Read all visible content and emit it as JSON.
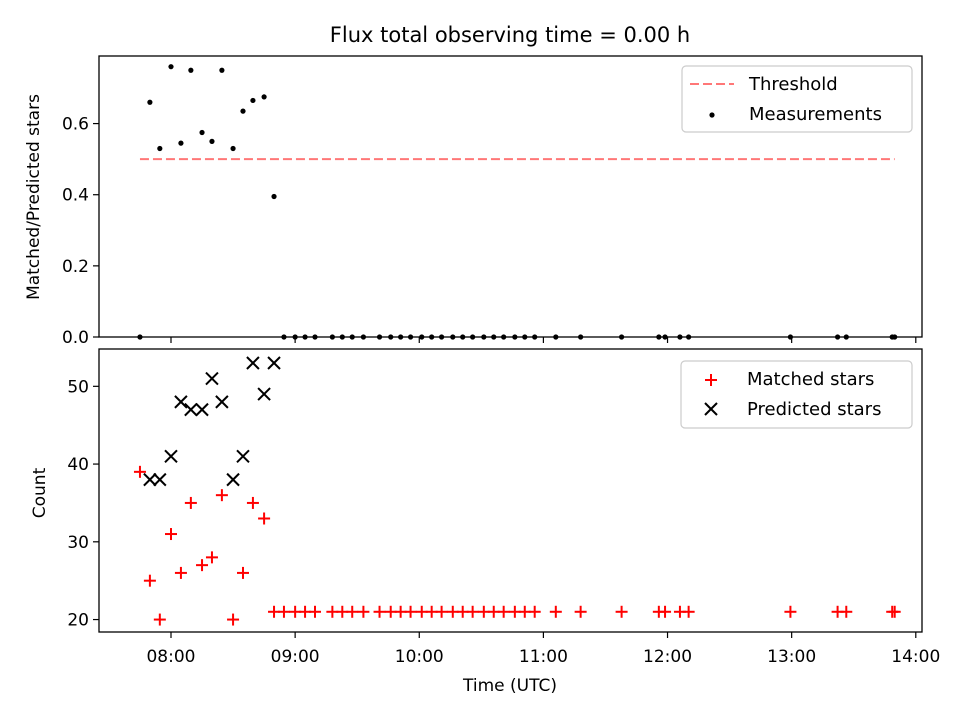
{
  "figure_title": "Flux total observing time = 0.00 h",
  "x_axis": {
    "label": "Time (UTC)",
    "range_hours": [
      7.42,
      14.05
    ],
    "tick_hours": [
      8,
      9,
      10,
      11,
      12,
      13,
      14
    ],
    "tick_labels": [
      "08:00",
      "09:00",
      "10:00",
      "11:00",
      "12:00",
      "13:00",
      "14:00"
    ]
  },
  "chart_data": [
    {
      "type": "scatter",
      "panel": "top",
      "ylabel": "Matched/Predicted stars",
      "ylim": [
        0,
        0.79
      ],
      "y_ticks": [
        0.0,
        0.2,
        0.4,
        0.6
      ],
      "y_tick_labels": [
        "0.0",
        "0.2",
        "0.4",
        "0.6"
      ],
      "legend_position": "top-right",
      "threshold": {
        "name": "Threshold",
        "x": [
          7.75,
          13.83
        ],
        "y": 0.5,
        "color": "#ff7777",
        "style": "dashed"
      },
      "series": [
        {
          "name": "Measurements",
          "marker": "dot",
          "color": "#000000",
          "x": [
            7.75,
            7.83,
            7.91,
            8.0,
            8.08,
            8.16,
            8.25,
            8.33,
            8.41,
            8.5,
            8.58,
            8.66,
            8.75,
            8.83,
            8.91,
            9.0,
            9.08,
            9.16,
            9.3,
            9.38,
            9.46,
            9.55,
            9.68,
            9.77,
            9.85,
            9.93,
            10.02,
            10.1,
            10.18,
            10.27,
            10.35,
            10.43,
            10.52,
            10.6,
            10.68,
            10.77,
            10.85,
            10.93,
            11.1,
            11.3,
            11.63,
            11.93,
            11.98,
            12.1,
            12.17,
            12.99,
            13.37,
            13.44,
            13.81,
            13.83
          ],
          "y": [
            0.0,
            0.66,
            0.53,
            0.76,
            0.545,
            0.75,
            0.575,
            0.55,
            0.75,
            0.53,
            0.635,
            0.665,
            0.675,
            0.395,
            0,
            0,
            0,
            0,
            0,
            0,
            0,
            0,
            0,
            0,
            0,
            0,
            0,
            0,
            0,
            0,
            0,
            0,
            0,
            0,
            0,
            0,
            0,
            0,
            0,
            0,
            0,
            0,
            0,
            0,
            0,
            0,
            0,
            0,
            0,
            0
          ]
        }
      ]
    },
    {
      "type": "scatter",
      "panel": "bottom",
      "ylabel": "Count",
      "ylim": [
        18.4,
        54.8
      ],
      "y_ticks": [
        20,
        30,
        40,
        50
      ],
      "y_tick_labels": [
        "20",
        "30",
        "40",
        "50"
      ],
      "legend_position": "top-right",
      "series": [
        {
          "name": "Matched stars",
          "marker": "plus",
          "color": "#ff0000",
          "x": [
            7.75,
            7.83,
            7.91,
            8.0,
            8.08,
            8.16,
            8.25,
            8.33,
            8.41,
            8.5,
            8.58,
            8.66,
            8.75,
            8.83,
            8.91,
            9.0,
            9.08,
            9.16,
            9.3,
            9.38,
            9.46,
            9.55,
            9.68,
            9.77,
            9.85,
            9.93,
            10.02,
            10.1,
            10.18,
            10.27,
            10.35,
            10.43,
            10.52,
            10.6,
            10.68,
            10.77,
            10.85,
            10.93,
            11.1,
            11.3,
            11.63,
            11.93,
            11.98,
            12.1,
            12.17,
            12.99,
            13.37,
            13.44,
            13.81,
            13.83
          ],
          "y": [
            39,
            25,
            20,
            31,
            26,
            35,
            27,
            28,
            36,
            20,
            26,
            35,
            33,
            21,
            21,
            21,
            21,
            21,
            21,
            21,
            21,
            21,
            21,
            21,
            21,
            21,
            21,
            21,
            21,
            21,
            21,
            21,
            21,
            21,
            21,
            21,
            21,
            21,
            21,
            21,
            21,
            21,
            21,
            21,
            21,
            21,
            21,
            21,
            21,
            21
          ]
        },
        {
          "name": "Predicted stars",
          "marker": "x",
          "color": "#000000",
          "x": [
            7.83,
            7.91,
            8.0,
            8.08,
            8.16,
            8.25,
            8.33,
            8.41,
            8.5,
            8.58,
            8.66,
            8.75,
            8.83
          ],
          "y": [
            38,
            38,
            41,
            48,
            47,
            47,
            51,
            48,
            38,
            41,
            53,
            49,
            53
          ]
        }
      ]
    }
  ]
}
